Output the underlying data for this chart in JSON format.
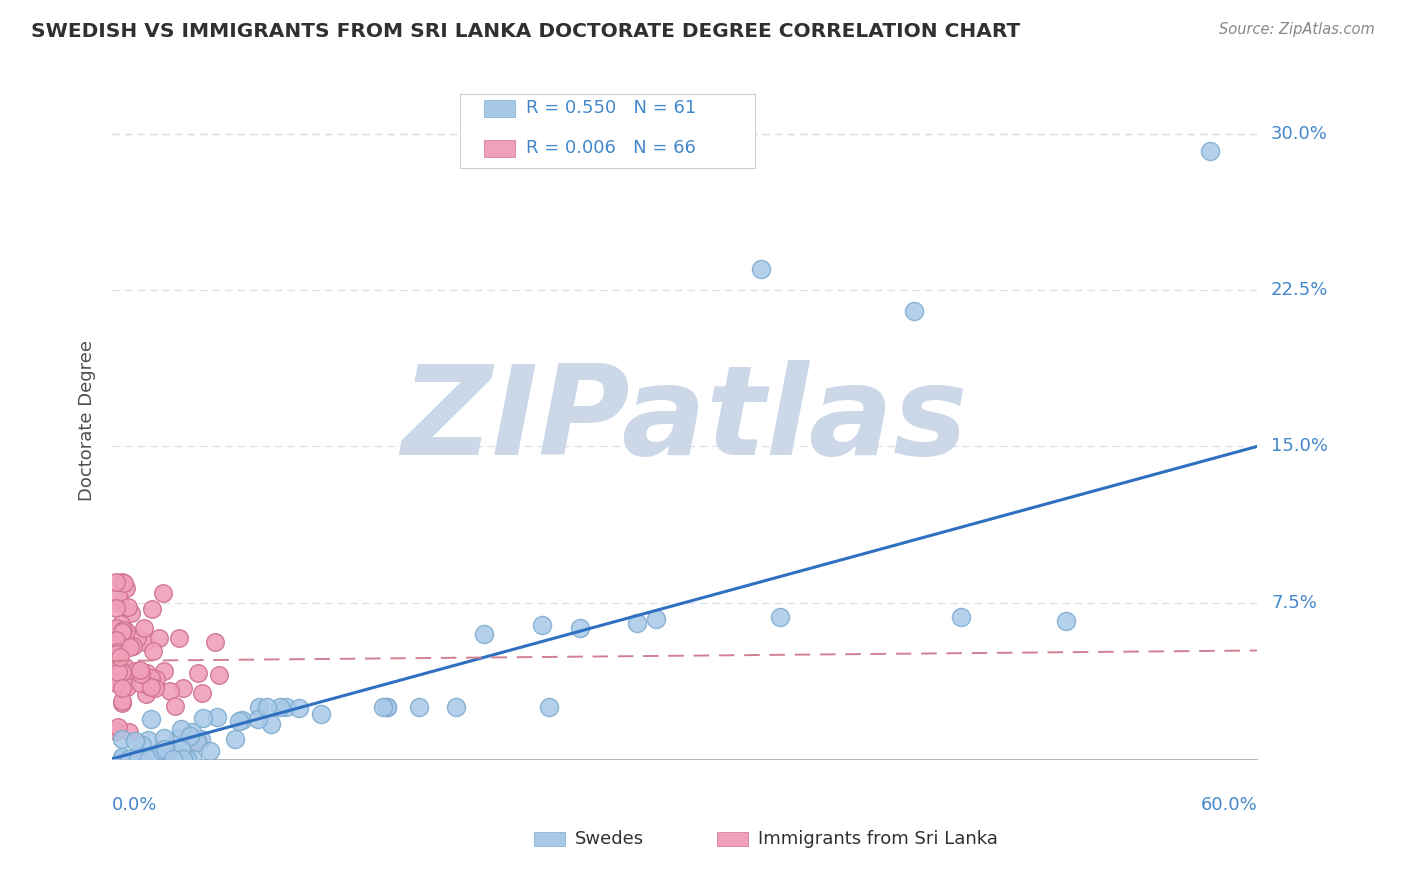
{
  "title": "SWEDISH VS IMMIGRANTS FROM SRI LANKA DOCTORATE DEGREE CORRELATION CHART",
  "source": "Source: ZipAtlas.com",
  "ylabel": "Doctorate Degree",
  "xlim": [
    0.0,
    0.6
  ],
  "ylim": [
    0.0,
    0.325
  ],
  "watermark": "ZIPatlas",
  "watermark_color": "#ccd8e8",
  "background_color": "#ffffff",
  "blue_scatter_color": "#a8c8e8",
  "blue_scatter_edge": "#7aaace",
  "pink_scatter_color": "#f0a0b8",
  "pink_scatter_edge": "#d07090",
  "blue_line_color": "#3070c0",
  "pink_line_color": "#d08090",
  "grid_color": "#d8dfe8",
  "title_color": "#303030",
  "axis_label_color": "#505050",
  "tick_label_color": "#4488cc",
  "legend_blue_text": "R = 0.550   N = 61",
  "legend_pink_text": "R = 0.006   N = 66",
  "bottom_label_swedes": "Swedes",
  "bottom_label_sri": "Immigrants from Sri Lanka"
}
